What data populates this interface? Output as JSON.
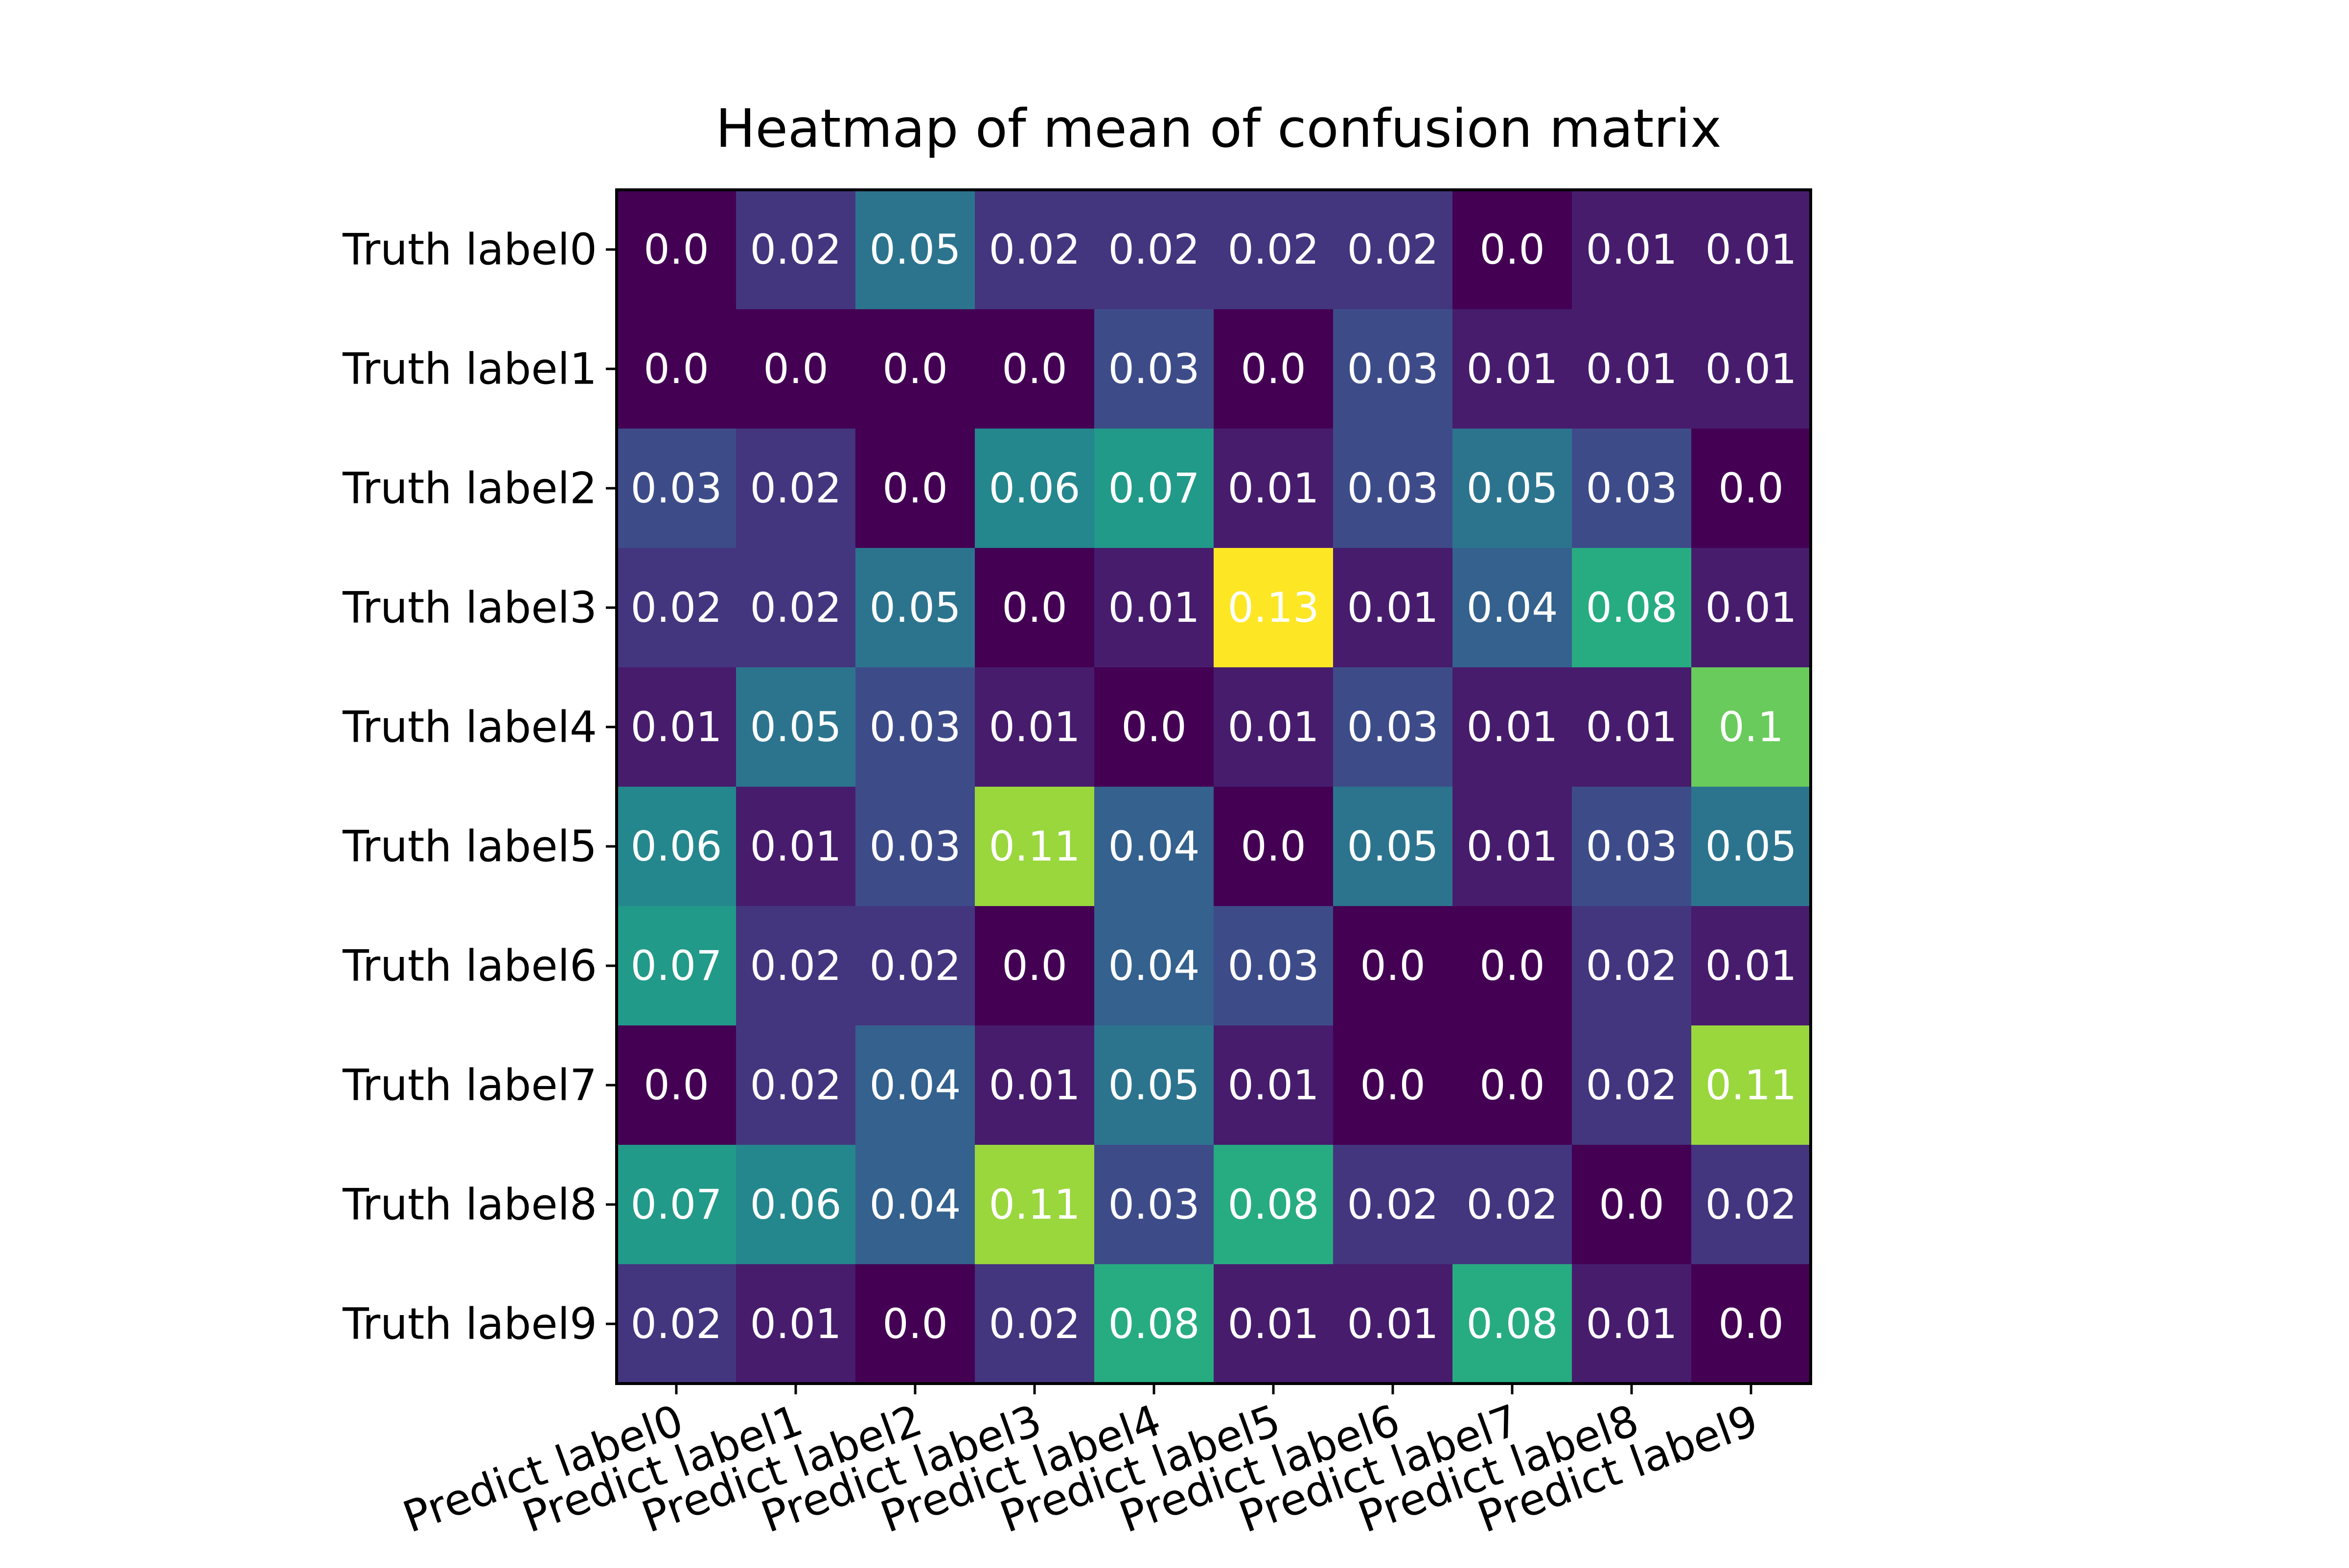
{
  "chart_data": {
    "type": "heatmap",
    "title": "Heatmap of mean of confusion matrix",
    "x_categories": [
      "Predict label0",
      "Predict label1",
      "Predict label2",
      "Predict label3",
      "Predict label4",
      "Predict label5",
      "Predict label6",
      "Predict label7",
      "Predict label8",
      "Predict label9"
    ],
    "y_categories": [
      "Truth label0",
      "Truth label1",
      "Truth label2",
      "Truth label3",
      "Truth label4",
      "Truth label5",
      "Truth label6",
      "Truth label7",
      "Truth label8",
      "Truth label9"
    ],
    "values": [
      [
        0.0,
        0.02,
        0.05,
        0.02,
        0.02,
        0.02,
        0.02,
        0.0,
        0.01,
        0.01
      ],
      [
        0.0,
        0.0,
        0.0,
        0.0,
        0.03,
        0.0,
        0.03,
        0.01,
        0.01,
        0.01
      ],
      [
        0.03,
        0.02,
        0.0,
        0.06,
        0.07,
        0.01,
        0.03,
        0.05,
        0.03,
        0.0
      ],
      [
        0.02,
        0.02,
        0.05,
        0.0,
        0.01,
        0.13,
        0.01,
        0.04,
        0.08,
        0.01
      ],
      [
        0.01,
        0.05,
        0.03,
        0.01,
        0.0,
        0.01,
        0.03,
        0.01,
        0.01,
        0.1
      ],
      [
        0.06,
        0.01,
        0.03,
        0.11,
        0.04,
        0.0,
        0.05,
        0.01,
        0.03,
        0.05
      ],
      [
        0.07,
        0.02,
        0.02,
        0.0,
        0.04,
        0.03,
        0.0,
        0.0,
        0.02,
        0.01
      ],
      [
        0.0,
        0.02,
        0.04,
        0.01,
        0.05,
        0.01,
        0.0,
        0.0,
        0.02,
        0.11
      ],
      [
        0.07,
        0.06,
        0.04,
        0.11,
        0.03,
        0.08,
        0.02,
        0.02,
        0.0,
        0.02
      ],
      [
        0.02,
        0.01,
        0.0,
        0.02,
        0.08,
        0.01,
        0.01,
        0.08,
        0.01,
        0.0
      ]
    ],
    "value_range": [
      0.0,
      0.13
    ],
    "colormap": "viridis",
    "cell_label_color": "#ffffff",
    "x_tick_rotation_deg": 20,
    "grid": false,
    "legend": "none"
  }
}
